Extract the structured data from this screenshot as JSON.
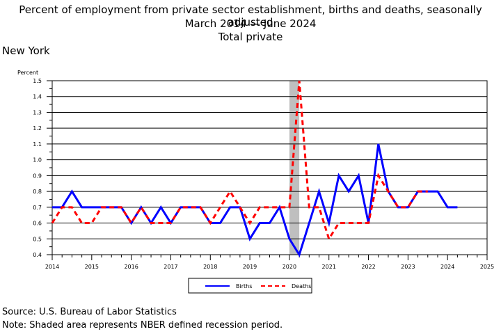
{
  "header": {
    "title": "Percent of employment from private sector establishment, births and deaths, seasonally adjusted",
    "subtitle_start": "March 2014",
    "subtitle_dash": "—",
    "subtitle_end": "June 2024",
    "subtitle2": "Total private",
    "region": "New York"
  },
  "footer": {
    "source": "Source: U.S. Bureau of Labor Statistics",
    "note": "Note: Shaded area represents NBER defined recession period."
  },
  "colors": {
    "births": "#0000ff",
    "deaths": "#ff0000",
    "recession": "#bfbfbf"
  },
  "chart_data": {
    "type": "line",
    "ylabel": "Percent",
    "ylim": [
      0.4,
      1.5
    ],
    "yticks": [
      "0.4",
      "0.5",
      "0.6",
      "0.7",
      "0.8",
      "0.9",
      "1.0",
      "1.1",
      "1.2",
      "1.3",
      "1.4",
      "1.5"
    ],
    "xlim": [
      2014,
      2025
    ],
    "xticks": [
      "2014",
      "2015",
      "2016",
      "2017",
      "2018",
      "2019",
      "2020",
      "2021",
      "2022",
      "2023",
      "2024",
      "2025"
    ],
    "grid": true,
    "legend": "bottom-center",
    "recession": [
      2020.0,
      2020.25
    ],
    "x": [
      "2014 Q1",
      "2014 Q2",
      "2014 Q3",
      "2014 Q4",
      "2015 Q1",
      "2015 Q2",
      "2015 Q3",
      "2015 Q4",
      "2016 Q1",
      "2016 Q2",
      "2016 Q3",
      "2016 Q4",
      "2017 Q1",
      "2017 Q2",
      "2017 Q3",
      "2017 Q4",
      "2018 Q1",
      "2018 Q2",
      "2018 Q3",
      "2018 Q4",
      "2019 Q1",
      "2019 Q2",
      "2019 Q3",
      "2019 Q4",
      "2020 Q1",
      "2020 Q2",
      "2020 Q3",
      "2020 Q4",
      "2021 Q1",
      "2021 Q2",
      "2021 Q3",
      "2021 Q4",
      "2022 Q1",
      "2022 Q2",
      "2022 Q3",
      "2022 Q4",
      "2023 Q1",
      "2023 Q2",
      "2023 Q3",
      "2023 Q4",
      "2024 Q1",
      "2024 Q2"
    ],
    "series": [
      {
        "name": "Births",
        "style": "solid",
        "values": [
          0.7,
          0.7,
          0.8,
          0.7,
          0.7,
          0.7,
          0.7,
          0.7,
          0.6,
          0.7,
          0.6,
          0.7,
          0.6,
          0.7,
          0.7,
          0.7,
          0.6,
          0.6,
          0.7,
          0.7,
          0.5,
          0.6,
          0.6,
          0.7,
          0.5,
          0.4,
          0.6,
          0.8,
          0.6,
          0.9,
          0.8,
          0.9,
          0.6,
          1.1,
          0.8,
          0.7,
          0.7,
          0.8,
          0.8,
          0.8,
          0.7,
          0.7
        ]
      },
      {
        "name": "Deaths",
        "style": "dashed",
        "values": [
          0.6,
          0.7,
          0.7,
          0.6,
          0.6,
          0.7,
          0.7,
          0.7,
          0.6,
          0.7,
          0.6,
          0.6,
          0.6,
          0.7,
          0.7,
          0.7,
          0.6,
          0.7,
          0.8,
          0.7,
          0.6,
          0.7,
          0.7,
          0.7,
          0.7,
          1.5,
          0.7,
          0.7,
          0.5,
          0.6,
          0.6,
          0.6,
          0.6,
          0.9,
          0.8,
          0.7,
          0.7,
          0.8,
          0.8,
          null,
          null,
          null
        ]
      }
    ]
  }
}
